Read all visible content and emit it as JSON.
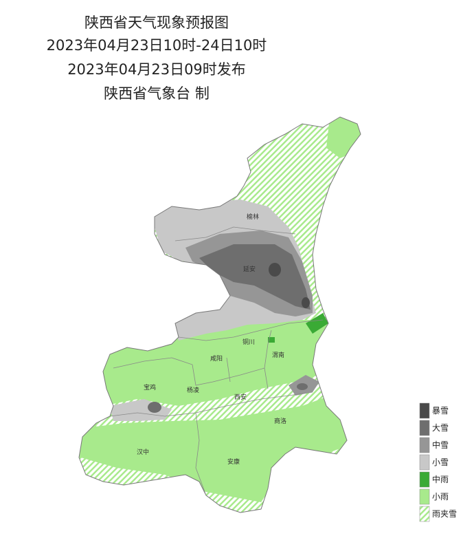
{
  "header": {
    "title": "陕西省天气现象预报图",
    "period": "2023年04月23日10时-24日10时",
    "issued": "2023年04月23日09时发布",
    "issuer": "陕西省气象台 制"
  },
  "cities": [
    "榆林",
    "延安",
    "铜川",
    "渭南",
    "咸阳",
    "宝鸡",
    "杨凌",
    "西安",
    "商洛",
    "汉中",
    "安康"
  ],
  "legend": [
    "暴雪",
    "大雪",
    "中雪",
    "小雪",
    "中雨",
    "小雨",
    "雨夹雪"
  ]
}
